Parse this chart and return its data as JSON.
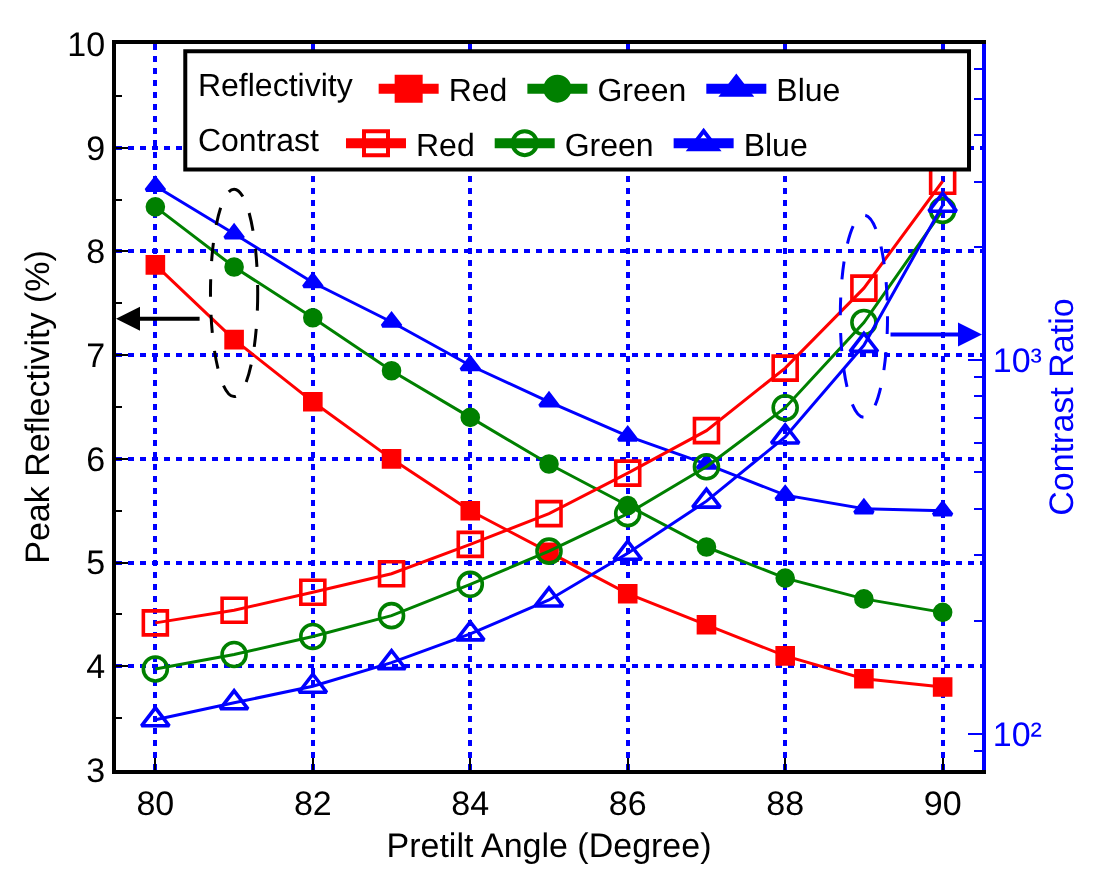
{
  "chart_data": {
    "type": "line",
    "xlabel": "Pretilt Angle (Degree)",
    "ylabel": "Peak Reflectivity (%)",
    "y2label": "Contrast Ratio",
    "x": [
      80,
      81,
      82,
      83,
      84,
      85,
      86,
      87,
      88,
      89,
      90
    ],
    "xlim": [
      79.5,
      90.5
    ],
    "xticks": [
      80,
      82,
      84,
      86,
      88,
      90
    ],
    "ylim": [
      3,
      10
    ],
    "yticks": [
      3,
      {
        "value": 3.5,
        "label": null
      },
      4,
      {
        "value": 4.5,
        "label": null
      },
      5,
      {
        "value": 5.5,
        "label": null
      },
      6,
      {
        "value": 6.5,
        "label": null
      },
      7,
      {
        "value": 7.5,
        "label": null
      },
      8,
      {
        "value": 8.5,
        "label": null
      },
      9,
      {
        "value": 9.5,
        "label": null
      },
      10
    ],
    "log": "y2",
    "y2lim": [
      80,
      7000
    ],
    "y2ticks": [
      {
        "value": 90,
        "label": null
      },
      {
        "value": 100,
        "label": "10²"
      },
      {
        "value": 200,
        "label": null
      },
      {
        "value": 300,
        "label": null
      },
      {
        "value": 400,
        "label": null
      },
      {
        "value": 500,
        "label": null
      },
      {
        "value": 600,
        "label": null
      },
      {
        "value": 700,
        "label": null
      },
      {
        "value": 800,
        "label": null
      },
      {
        "value": 900,
        "label": null
      },
      {
        "value": 1000,
        "label": "10³"
      },
      {
        "value": 2000,
        "label": null
      },
      {
        "value": 3000,
        "label": null
      },
      {
        "value": 4000,
        "label": null
      },
      {
        "value": 5000,
        "label": null
      },
      {
        "value": 6000,
        "label": null
      }
    ],
    "grid": true,
    "legend": "top",
    "line_style": "solid",
    "annotations": [
      "Reflectivity",
      "Contrast"
    ],
    "series": [
      {
        "name": "Red",
        "color": "#ff0000",
        "marker": "square",
        "values": [
          7.87,
          7.15,
          6.55,
          6.0,
          5.5,
          5.1,
          4.7,
          4.4,
          4.1,
          3.88,
          3.8
        ]
      },
      {
        "name": "Green",
        "color": "#008000",
        "marker": "circle",
        "values": [
          8.43,
          7.85,
          7.36,
          6.85,
          6.4,
          5.95,
          5.55,
          5.15,
          4.85,
          4.65,
          4.52
        ]
      },
      {
        "name": "Blue",
        "color": "#0000ff",
        "marker": "triangle",
        "values": [
          8.63,
          8.17,
          7.7,
          7.32,
          6.9,
          6.55,
          6.22,
          5.95,
          5.65,
          5.52,
          5.5
        ]
      },
      {
        "name": "Red",
        "color": "#ff0000",
        "marker": "square",
        "axis": "y2",
        "values": [
          198,
          214,
          239,
          268,
          321,
          388,
          498,
          647,
          951,
          1556,
          3006
        ]
      },
      {
        "name": "Green",
        "color": "#008000",
        "marker": "circle",
        "axis": "y2",
        "values": [
          149,
          163,
          182,
          207,
          251,
          308,
          388,
          518,
          745,
          1259,
          2512
        ]
      },
      {
        "name": "Blue",
        "color": "#0000ff",
        "marker": "triangle",
        "axis": "y2",
        "values": [
          109,
          121,
          134,
          155,
          185,
          228,
          304,
          419,
          622,
          1094,
          2594
        ]
      }
    ]
  }
}
